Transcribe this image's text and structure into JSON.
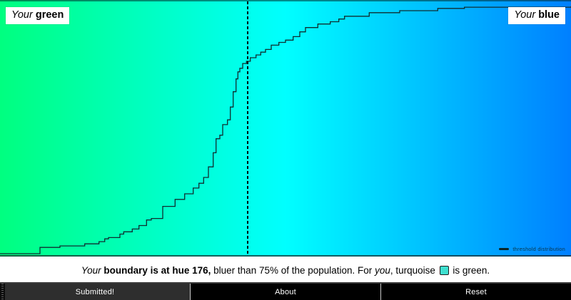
{
  "plot": {
    "left_label": {
      "prefix": "Your ",
      "word": "green"
    },
    "right_label": {
      "prefix": "Your ",
      "word": "blue"
    },
    "legend_label": "threshold distribution"
  },
  "caption": {
    "part_your": "Your ",
    "part_bold": "boundary is at hue 176, ",
    "part_mid": "bluer than 75% of the population. For ",
    "part_you": "you",
    "part_turquoise": ", turquoise ",
    "part_end": " is green.",
    "swatch_color": "#40E0D0"
  },
  "buttons": [
    {
      "label": "Submitted!"
    },
    {
      "label": "About"
    },
    {
      "label": "Reset"
    }
  ],
  "chart_data": {
    "type": "line",
    "subtype": "step-cdf",
    "legend": "threshold distribution",
    "hue_range": [
      150,
      210
    ],
    "pct_range": [
      0,
      100
    ],
    "boundary_hue": 176,
    "boundary_percentile": 75,
    "gradient": {
      "hue_start": 150,
      "hue_end": 210,
      "saturation": "100%",
      "lightness": "50%"
    },
    "curve_color": "#102e30",
    "points": [
      [
        150.0,
        0
      ],
      [
        154.2,
        2.5
      ],
      [
        156.3,
        3.1
      ],
      [
        158.9,
        3.9
      ],
      [
        160.4,
        4.8
      ],
      [
        161.0,
        5.9
      ],
      [
        161.4,
        6.4
      ],
      [
        162.6,
        7.8
      ],
      [
        163.0,
        8.7
      ],
      [
        163.9,
        9.8
      ],
      [
        164.6,
        11.2
      ],
      [
        165.4,
        13.4
      ],
      [
        165.9,
        14.0
      ],
      [
        167.1,
        18.8
      ],
      [
        168.4,
        21.6
      ],
      [
        169.4,
        23.8
      ],
      [
        170.3,
        26.1
      ],
      [
        170.9,
        28.0
      ],
      [
        171.4,
        30.3
      ],
      [
        171.9,
        34.5
      ],
      [
        172.4,
        40.1
      ],
      [
        172.7,
        45.7
      ],
      [
        173.1,
        47.1
      ],
      [
        173.4,
        51.3
      ],
      [
        173.9,
        53.2
      ],
      [
        174.2,
        58.3
      ],
      [
        174.5,
        64.4
      ],
      [
        174.8,
        69.5
      ],
      [
        175.0,
        72.3
      ],
      [
        175.2,
        73.7
      ],
      [
        175.5,
        75.6
      ],
      [
        175.9,
        76.5
      ],
      [
        176.3,
        77.9
      ],
      [
        176.9,
        79.0
      ],
      [
        177.4,
        80.1
      ],
      [
        177.9,
        81.2
      ],
      [
        178.5,
        82.9
      ],
      [
        179.3,
        84.0
      ],
      [
        180.0,
        84.9
      ],
      [
        180.8,
        86.3
      ],
      [
        181.5,
        88.2
      ],
      [
        182.1,
        89.9
      ],
      [
        183.4,
        91.3
      ],
      [
        184.7,
        92.2
      ],
      [
        185.6,
        93.3
      ],
      [
        186.2,
        94.4
      ],
      [
        188.8,
        95.8
      ],
      [
        192.0,
        96.6
      ],
      [
        196.0,
        97.5
      ],
      [
        198.8,
        98.0
      ],
      [
        210.0,
        98.3
      ]
    ]
  }
}
